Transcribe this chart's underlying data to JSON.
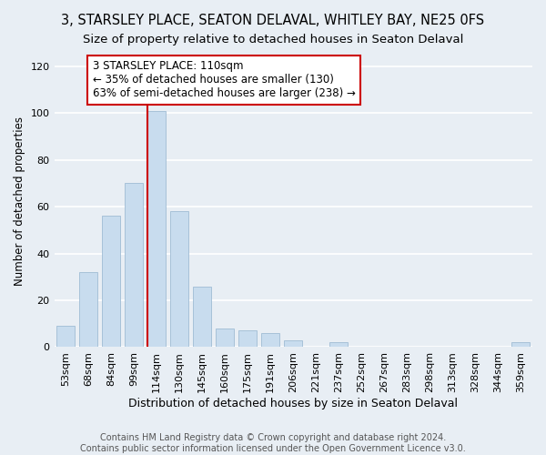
{
  "title": "3, STARSLEY PLACE, SEATON DELAVAL, WHITLEY BAY, NE25 0FS",
  "subtitle": "Size of property relative to detached houses in Seaton Delaval",
  "xlabel": "Distribution of detached houses by size in Seaton Delaval",
  "ylabel": "Number of detached properties",
  "footnote1": "Contains HM Land Registry data © Crown copyright and database right 2024.",
  "footnote2": "Contains public sector information licensed under the Open Government Licence v3.0.",
  "categories": [
    "53sqm",
    "68sqm",
    "84sqm",
    "99sqm",
    "114sqm",
    "130sqm",
    "145sqm",
    "160sqm",
    "175sqm",
    "191sqm",
    "206sqm",
    "221sqm",
    "237sqm",
    "252sqm",
    "267sqm",
    "283sqm",
    "298sqm",
    "313sqm",
    "328sqm",
    "344sqm",
    "359sqm"
  ],
  "values": [
    9,
    32,
    56,
    70,
    101,
    58,
    26,
    8,
    7,
    6,
    3,
    0,
    2,
    0,
    0,
    0,
    0,
    0,
    0,
    0,
    2
  ],
  "highlight_index": 4,
  "bar_color": "#c8dcee",
  "bar_edge_color": "#a0bcd4",
  "annotation_text": "3 STARSLEY PLACE: 110sqm\n← 35% of detached houses are smaller (130)\n63% of semi-detached houses are larger (238) →",
  "vline_x": 4,
  "box_color": "#cc0000",
  "ylim": [
    0,
    125
  ],
  "yticks": [
    0,
    20,
    40,
    60,
    80,
    100,
    120
  ],
  "bg_color": "#e8eef4",
  "grid_color": "#ffffff",
  "title_fontsize": 10.5,
  "subtitle_fontsize": 9.5,
  "xlabel_fontsize": 9,
  "ylabel_fontsize": 8.5,
  "tick_fontsize": 8,
  "annotation_fontsize": 8.5,
  "footnote_fontsize": 7
}
